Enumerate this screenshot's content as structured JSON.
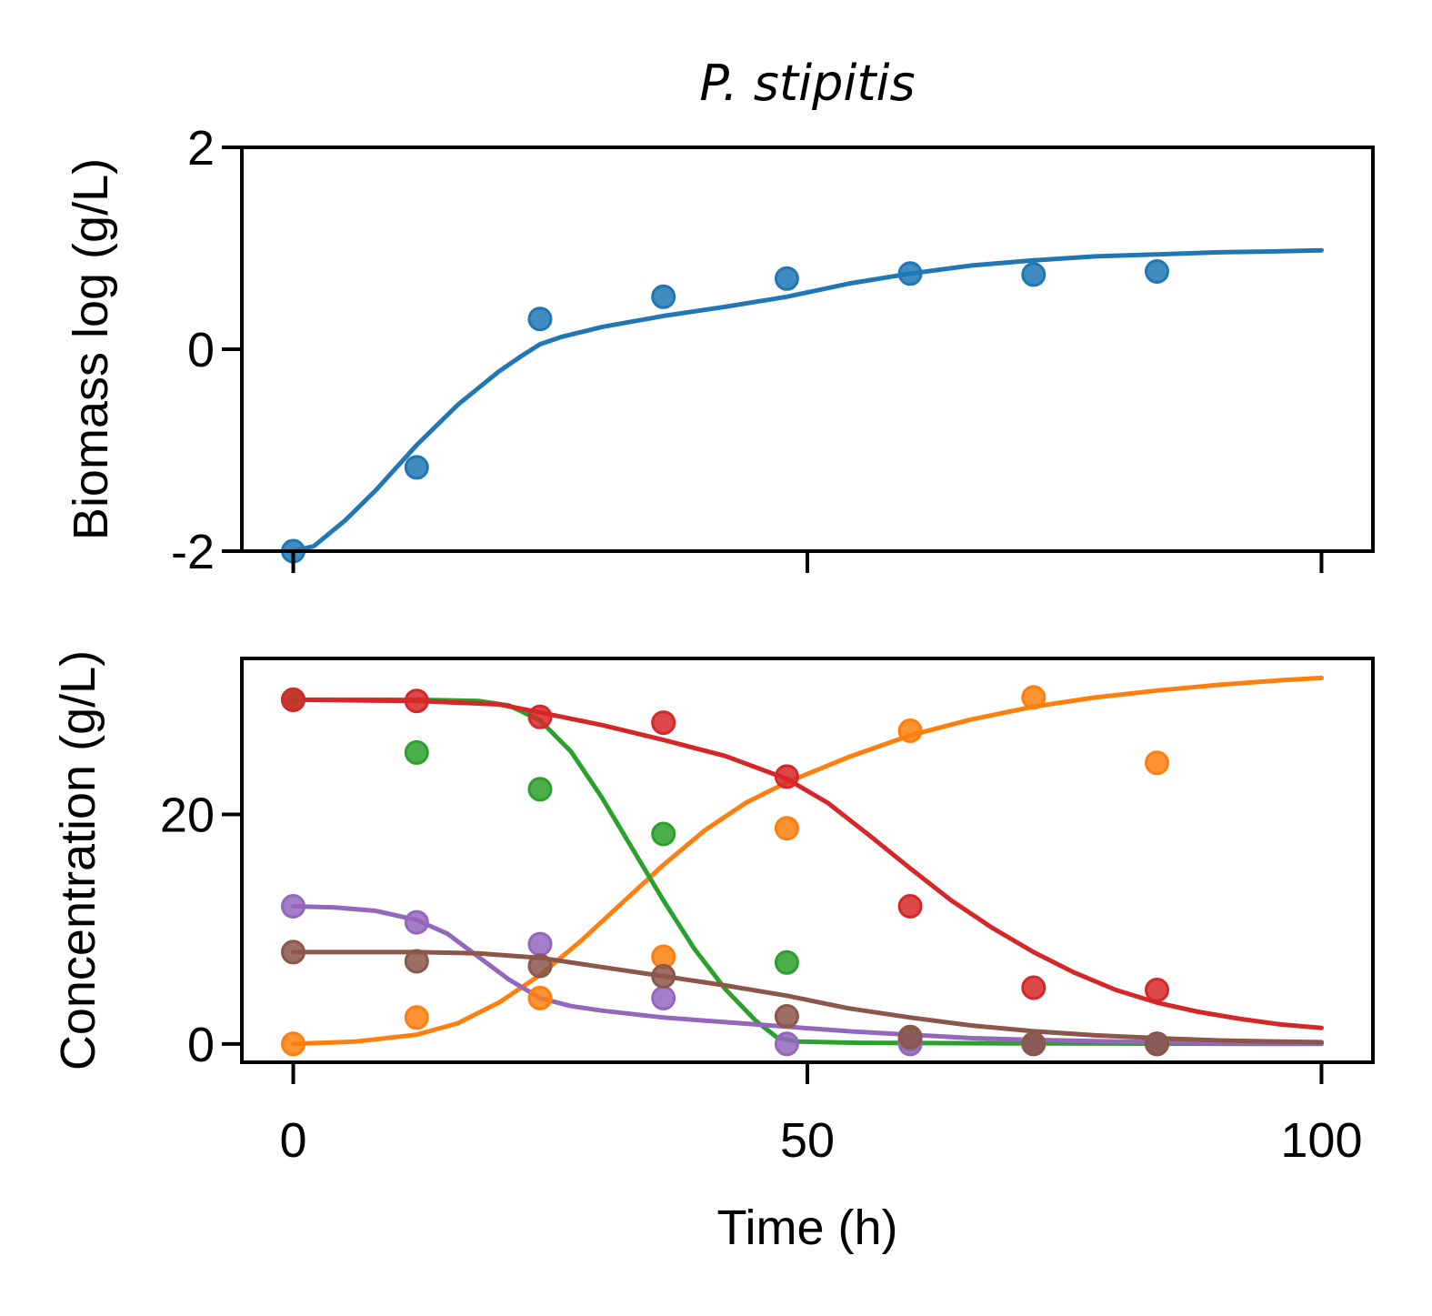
{
  "chart_data": [
    {
      "type": "scatter",
      "panel": "top",
      "title": "P. stipitis",
      "ylabel": "Biomass log (g/L)",
      "xlabel": "",
      "xlim": [
        -5,
        105
      ],
      "ylim": [
        -2,
        2
      ],
      "yticks": [
        -2,
        0,
        2
      ],
      "ytick_labels": [
        "-2",
        "0",
        "2"
      ],
      "xticks": [
        0,
        50,
        100
      ],
      "grid": false,
      "series": [
        {
          "color": "#1f77b4",
          "points": [
            [
              0,
              -2.0
            ],
            [
              12,
              -1.17
            ],
            [
              24,
              0.3
            ],
            [
              36,
              0.52
            ],
            [
              48,
              0.7
            ],
            [
              60,
              0.75
            ],
            [
              72,
              0.74
            ],
            [
              84,
              0.77
            ]
          ],
          "fit": [
            [
              0,
              -2.0
            ],
            [
              2,
              -1.95
            ],
            [
              5,
              -1.7
            ],
            [
              8,
              -1.4
            ],
            [
              12,
              -0.95
            ],
            [
              16,
              -0.55
            ],
            [
              20,
              -0.22
            ],
            [
              22,
              -0.08
            ],
            [
              24,
              0.05
            ],
            [
              26,
              0.12
            ],
            [
              30,
              0.22
            ],
            [
              36,
              0.33
            ],
            [
              42,
              0.42
            ],
            [
              48,
              0.52
            ],
            [
              54,
              0.65
            ],
            [
              60,
              0.75
            ],
            [
              66,
              0.83
            ],
            [
              72,
              0.88
            ],
            [
              78,
              0.92
            ],
            [
              84,
              0.94
            ],
            [
              90,
              0.96
            ],
            [
              96,
              0.97
            ],
            [
              100,
              0.98
            ]
          ]
        }
      ]
    },
    {
      "type": "scatter",
      "panel": "bottom",
      "ylabel": "Concentration (g/L)",
      "xlabel": "Time (h)",
      "xlim": [
        -5,
        105
      ],
      "ylim": [
        -1.6,
        33.6
      ],
      "yticks": [
        0,
        20
      ],
      "ytick_labels": [
        "0",
        "20"
      ],
      "xticks": [
        0,
        50,
        100
      ],
      "xtick_labels": [
        "0",
        "50",
        "100"
      ],
      "grid": false,
      "series": [
        {
          "color": "#ff7f0e",
          "points": [
            [
              0,
              0.0
            ],
            [
              12,
              2.3
            ],
            [
              24,
              4.0
            ],
            [
              36,
              7.6
            ],
            [
              48,
              18.8
            ],
            [
              60,
              27.3
            ],
            [
              72,
              30.2
            ],
            [
              84,
              24.5
            ]
          ],
          "fit": [
            [
              0,
              0.0
            ],
            [
              6,
              0.2
            ],
            [
              12,
              0.8
            ],
            [
              16,
              1.8
            ],
            [
              20,
              3.6
            ],
            [
              24,
              6.0
            ],
            [
              28,
              9.0
            ],
            [
              32,
              12.3
            ],
            [
              36,
              15.6
            ],
            [
              40,
              18.6
            ],
            [
              44,
              21.0
            ],
            [
              48,
              22.8
            ],
            [
              54,
              25.0
            ],
            [
              60,
              26.9
            ],
            [
              66,
              28.3
            ],
            [
              72,
              29.4
            ],
            [
              78,
              30.2
            ],
            [
              84,
              30.8
            ],
            [
              90,
              31.3
            ],
            [
              96,
              31.7
            ],
            [
              100,
              31.9
            ]
          ]
        },
        {
          "color": "#2ca02c",
          "points": [
            [
              0,
              30.0
            ],
            [
              12,
              25.4
            ],
            [
              24,
              22.2
            ],
            [
              36,
              18.3
            ],
            [
              48,
              7.1
            ],
            [
              60,
              0.4
            ],
            [
              72,
              0.0
            ],
            [
              84,
              0.0
            ]
          ],
          "fit": [
            [
              0,
              30.0
            ],
            [
              12,
              30.0
            ],
            [
              18,
              29.9
            ],
            [
              21,
              29.5
            ],
            [
              24,
              28.2
            ],
            [
              27,
              25.5
            ],
            [
              30,
              21.5
            ],
            [
              33,
              17.0
            ],
            [
              36,
              12.5
            ],
            [
              39,
              8.3
            ],
            [
              42,
              4.8
            ],
            [
              45,
              2.0
            ],
            [
              47,
              0.6
            ],
            [
              49,
              0.2
            ],
            [
              55,
              0.1
            ],
            [
              70,
              0.05
            ],
            [
              100,
              0.0
            ]
          ]
        },
        {
          "color": "#d62728",
          "points": [
            [
              0,
              30.0
            ],
            [
              12,
              29.9
            ],
            [
              24,
              28.5
            ],
            [
              36,
              28.0
            ],
            [
              48,
              23.3
            ],
            [
              60,
              12.0
            ],
            [
              72,
              4.9
            ],
            [
              84,
              4.7
            ]
          ],
          "fit": [
            [
              0,
              30.0
            ],
            [
              12,
              29.9
            ],
            [
              20,
              29.6
            ],
            [
              24,
              28.9
            ],
            [
              30,
              27.8
            ],
            [
              36,
              26.5
            ],
            [
              42,
              25.1
            ],
            [
              48,
              23.1
            ],
            [
              52,
              21.0
            ],
            [
              56,
              18.2
            ],
            [
              60,
              15.3
            ],
            [
              64,
              12.5
            ],
            [
              68,
              10.1
            ],
            [
              72,
              8.0
            ],
            [
              76,
              6.2
            ],
            [
              80,
              4.7
            ],
            [
              84,
              3.6
            ],
            [
              88,
              2.8
            ],
            [
              92,
              2.2
            ],
            [
              96,
              1.7
            ],
            [
              100,
              1.4
            ]
          ]
        },
        {
          "color": "#9467bd",
          "points": [
            [
              0,
              12.0
            ],
            [
              12,
              10.6
            ],
            [
              24,
              8.7
            ],
            [
              36,
              4.0
            ],
            [
              48,
              0.0
            ],
            [
              60,
              0.0
            ],
            [
              72,
              0.0
            ],
            [
              84,
              0.0
            ]
          ],
          "fit": [
            [
              0,
              12.0
            ],
            [
              4,
              11.9
            ],
            [
              8,
              11.6
            ],
            [
              12,
              10.8
            ],
            [
              15,
              9.6
            ],
            [
              18,
              7.6
            ],
            [
              21,
              5.6
            ],
            [
              24,
              4.0
            ],
            [
              27,
              3.3
            ],
            [
              30,
              2.9
            ],
            [
              36,
              2.3
            ],
            [
              42,
              1.9
            ],
            [
              48,
              1.5
            ],
            [
              54,
              1.1
            ],
            [
              60,
              0.8
            ],
            [
              66,
              0.5
            ],
            [
              72,
              0.35
            ],
            [
              78,
              0.25
            ],
            [
              84,
              0.15
            ],
            [
              90,
              0.1
            ],
            [
              100,
              0.05
            ]
          ]
        },
        {
          "color": "#8c564b",
          "points": [
            [
              0,
              8.0
            ],
            [
              12,
              7.2
            ],
            [
              24,
              6.8
            ],
            [
              36,
              5.9
            ],
            [
              48,
              2.4
            ],
            [
              60,
              0.6
            ],
            [
              72,
              0.0
            ],
            [
              84,
              0.0
            ]
          ],
          "fit": [
            [
              0,
              8.0
            ],
            [
              12,
              8.0
            ],
            [
              18,
              7.9
            ],
            [
              24,
              7.5
            ],
            [
              30,
              6.7
            ],
            [
              36,
              5.9
            ],
            [
              42,
              5.1
            ],
            [
              48,
              4.2
            ],
            [
              54,
              3.1
            ],
            [
              60,
              2.3
            ],
            [
              66,
              1.6
            ],
            [
              72,
              1.1
            ],
            [
              78,
              0.75
            ],
            [
              84,
              0.5
            ],
            [
              90,
              0.3
            ],
            [
              96,
              0.2
            ],
            [
              100,
              0.15
            ]
          ]
        }
      ]
    }
  ]
}
